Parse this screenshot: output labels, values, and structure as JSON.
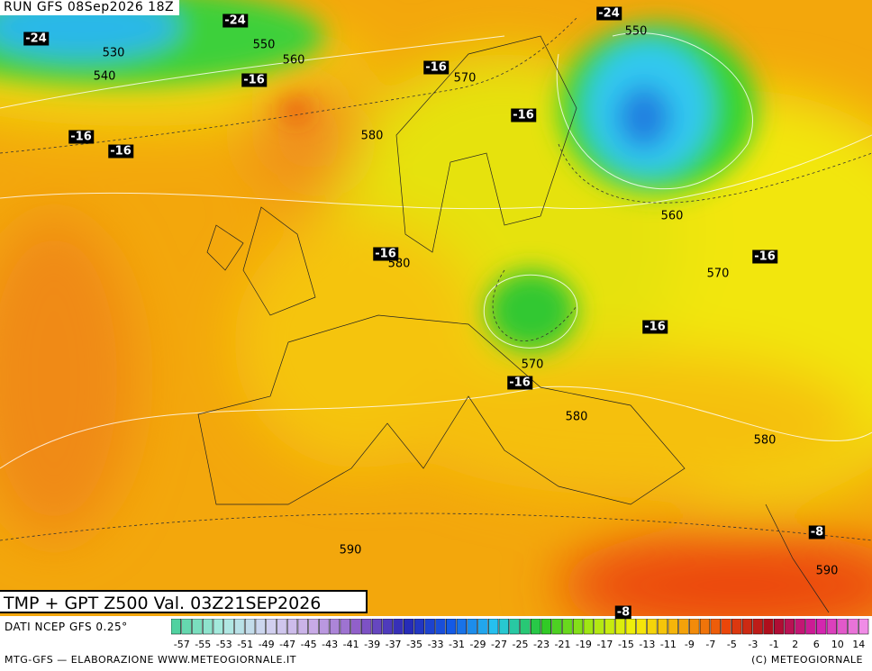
{
  "header": {
    "run": "RUN GFS 08Sep2026 18Z"
  },
  "map": {
    "title": "TMP + GPT Z500 Val. 03Z21SEP2026",
    "labels": [
      "-24",
      "530",
      "540",
      "-24",
      "550",
      "560",
      "-16",
      "-16",
      "570",
      "-24",
      "550",
      "-16",
      "580",
      "-16",
      "-16",
      "560",
      "-16",
      "580",
      "570",
      "-16",
      "-16",
      "570",
      "-16",
      "580",
      "580",
      "590",
      "-8",
      "590",
      "-8"
    ]
  },
  "legend": {
    "source": "DATI NCEP GFS 0.25°",
    "labels": [
      "-57",
      "-55",
      "-53",
      "-51",
      "-49",
      "-47",
      "-45",
      "-43",
      "-41",
      "-39",
      "-37",
      "-35",
      "-33",
      "-31",
      "-29",
      "-27",
      "-25",
      "-23",
      "-21",
      "-19",
      "-17",
      "-15",
      "-13",
      "-11",
      "-9",
      "-7",
      "-5",
      "-3",
      "-1",
      "2",
      "6",
      "10",
      "14"
    ]
  },
  "footer": {
    "left": "MTG-GFS — ELABORAZIONE WWW.METEOGIORNALE.IT",
    "right": "(C) METEOGIORNALE"
  }
}
